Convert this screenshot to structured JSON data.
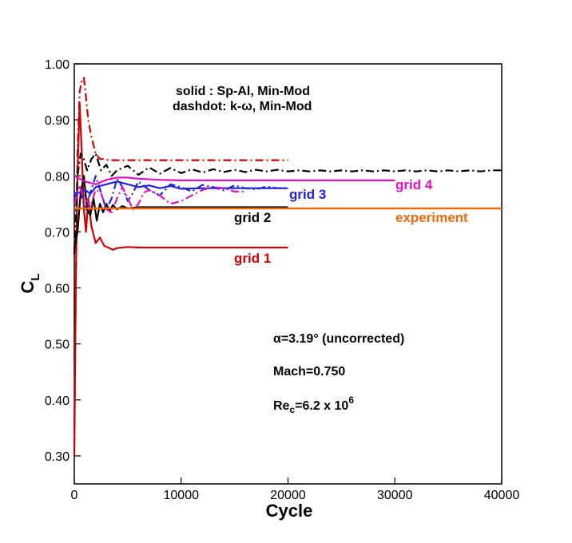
{
  "chart_data": {
    "type": "line",
    "xlabel": "Cycle",
    "ylabel_main": "C",
    "ylabel_sub": "L",
    "xlim": [
      0,
      40000
    ],
    "ylim": [
      0.25,
      1.0
    ],
    "xticks": [
      0,
      10000,
      20000,
      30000,
      40000
    ],
    "xtick_labels": [
      "0",
      "10000",
      "20000",
      "30000",
      "40000"
    ],
    "yticks": [
      0.3,
      0.4,
      0.5,
      0.6,
      0.7,
      0.8,
      0.9,
      1.0
    ],
    "ytick_labels": [
      "0.30",
      "0.40",
      "0.50",
      "0.60",
      "0.70",
      "0.80",
      "0.90",
      "1.00"
    ],
    "legend_note": {
      "line1": "solid : Sp-Al, Min-Mod",
      "line2": "dashdot: k-ω, Min-Mod"
    },
    "conditions": {
      "alpha": "α=3.19° (uncorrected)",
      "mach": "Mach=0.750",
      "re_main": "Re",
      "re_sub": "c",
      "re_value": "=6.2 x 10",
      "re_exp": "6"
    },
    "colors": {
      "grid1": "#cc0000",
      "grid2": "#000000",
      "grid3": "#2222dd",
      "grid4": "#e010c0",
      "experiment": "#f06a0a"
    },
    "labels": {
      "grid1": "grid 1",
      "grid2": "grid 2",
      "grid3": "grid 3",
      "grid4": "grid 4",
      "experiment": "experiment"
    },
    "experiment_value": 0.742,
    "series": [
      {
        "id": "grid1-solid",
        "grid": "grid1",
        "style": "solid",
        "x": [
          0,
          150,
          300,
          500,
          700,
          900,
          1100,
          1300,
          1600,
          2000,
          2400,
          2800,
          3200,
          3600,
          4000,
          5000,
          6000,
          8000,
          10000,
          15000,
          20000
        ],
        "y": [
          0.3,
          0.62,
          0.8,
          0.93,
          0.84,
          0.74,
          0.7,
          0.76,
          0.71,
          0.68,
          0.69,
          0.675,
          0.672,
          0.668,
          0.671,
          0.673,
          0.672,
          0.672,
          0.672,
          0.672,
          0.672
        ]
      },
      {
        "id": "grid1-dashdot",
        "grid": "grid1",
        "style": "dashdot",
        "x": [
          0,
          150,
          300,
          500,
          700,
          900,
          1100,
          1300,
          1600,
          2000,
          2400,
          2800,
          3200,
          3600,
          4000,
          6000,
          10000,
          15000,
          20000
        ],
        "y": [
          0.32,
          0.62,
          0.84,
          0.95,
          0.97,
          0.975,
          0.94,
          0.9,
          0.87,
          0.84,
          0.83,
          0.83,
          0.828,
          0.828,
          0.828,
          0.828,
          0.828,
          0.828,
          0.828
        ]
      },
      {
        "id": "grid2-solid",
        "grid": "grid2",
        "style": "solid",
        "x": [
          0,
          300,
          600,
          900,
          1200,
          1500,
          1800,
          2100,
          2400,
          2700,
          3000,
          3300,
          3600,
          4000,
          4500,
          5000,
          6000,
          8000,
          10000,
          15000,
          20000
        ],
        "y": [
          0.67,
          0.7,
          0.77,
          0.8,
          0.74,
          0.73,
          0.76,
          0.72,
          0.75,
          0.735,
          0.75,
          0.737,
          0.748,
          0.74,
          0.746,
          0.742,
          0.744,
          0.744,
          0.744,
          0.744,
          0.744
        ]
      },
      {
        "id": "grid2-dashdot",
        "grid": "grid2",
        "style": "dashdot",
        "x": [
          0,
          300,
          600,
          900,
          1200,
          1600,
          2000,
          2500,
          3000,
          3500,
          4000,
          5000,
          6000,
          7000,
          8000,
          9000,
          10000,
          11000,
          12000,
          13000,
          14000,
          15000,
          16000,
          17000,
          18000,
          19000,
          20000,
          21000,
          22000,
          23000,
          24000,
          25000,
          26000,
          27000,
          28000,
          29000,
          30000,
          31000,
          32000,
          33000,
          34000,
          35000,
          36000,
          37000,
          38000,
          39000,
          40000
        ],
        "y": [
          0.66,
          0.8,
          0.84,
          0.83,
          0.81,
          0.83,
          0.84,
          0.81,
          0.82,
          0.8,
          0.81,
          0.818,
          0.802,
          0.815,
          0.804,
          0.814,
          0.805,
          0.812,
          0.806,
          0.812,
          0.807,
          0.811,
          0.807,
          0.811,
          0.808,
          0.811,
          0.808,
          0.81,
          0.808,
          0.81,
          0.808,
          0.81,
          0.808,
          0.81,
          0.808,
          0.81,
          0.808,
          0.81,
          0.808,
          0.81,
          0.808,
          0.81,
          0.808,
          0.81,
          0.808,
          0.81,
          0.81
        ]
      },
      {
        "id": "grid3-solid",
        "grid": "grid3",
        "style": "solid",
        "x": [
          0,
          500,
          1000,
          1500,
          2000,
          3000,
          4000,
          5000,
          6000,
          7000,
          8000,
          9000,
          10000,
          12000,
          14000,
          16000,
          18000,
          20000
        ],
        "y": [
          0.77,
          0.77,
          0.775,
          0.768,
          0.78,
          0.785,
          0.79,
          0.785,
          0.78,
          0.783,
          0.778,
          0.782,
          0.777,
          0.778,
          0.778,
          0.778,
          0.778,
          0.778
        ]
      },
      {
        "id": "grid3-dashdot",
        "grid": "grid3",
        "style": "dashdot",
        "x": [
          0,
          500,
          1000,
          1500,
          2000,
          2500,
          3000,
          3500,
          4000,
          4500,
          5000,
          5500,
          6000,
          7000,
          8000,
          9000,
          10000,
          11000,
          12000,
          13000,
          14000,
          15000,
          16000,
          17000,
          18000,
          19000,
          20000
        ],
        "y": [
          0.76,
          0.78,
          0.74,
          0.77,
          0.8,
          0.77,
          0.74,
          0.76,
          0.795,
          0.78,
          0.755,
          0.77,
          0.79,
          0.775,
          0.765,
          0.785,
          0.78,
          0.772,
          0.784,
          0.78,
          0.774,
          0.783,
          0.778,
          0.776,
          0.781,
          0.778,
          0.778
        ]
      },
      {
        "id": "grid4-solid",
        "grid": "grid4",
        "style": "solid",
        "x": [
          0,
          1000,
          2000,
          3000,
          4000,
          5000,
          6000,
          8000,
          10000,
          12000,
          15000,
          18000,
          20000,
          22000,
          25000,
          28000,
          30000
        ],
        "y": [
          0.8,
          0.79,
          0.785,
          0.793,
          0.797,
          0.797,
          0.795,
          0.793,
          0.792,
          0.792,
          0.792,
          0.792,
          0.792,
          0.792,
          0.792,
          0.792,
          0.792
        ]
      },
      {
        "id": "grid4-dashdot",
        "grid": "grid4",
        "style": "dashdot",
        "x": [
          0,
          500,
          1000,
          1500,
          2000,
          2500,
          3000,
          3500,
          4000,
          4500,
          5000,
          5500,
          6000,
          6500,
          7000,
          8000,
          9000,
          10000,
          11000,
          12000,
          13000,
          14000,
          15000,
          16000
        ],
        "y": [
          0.75,
          0.78,
          0.76,
          0.745,
          0.775,
          0.77,
          0.74,
          0.735,
          0.76,
          0.78,
          0.76,
          0.74,
          0.75,
          0.77,
          0.775,
          0.765,
          0.75,
          0.755,
          0.765,
          0.775,
          0.78,
          0.778,
          0.772,
          0.772
        ]
      }
    ]
  }
}
